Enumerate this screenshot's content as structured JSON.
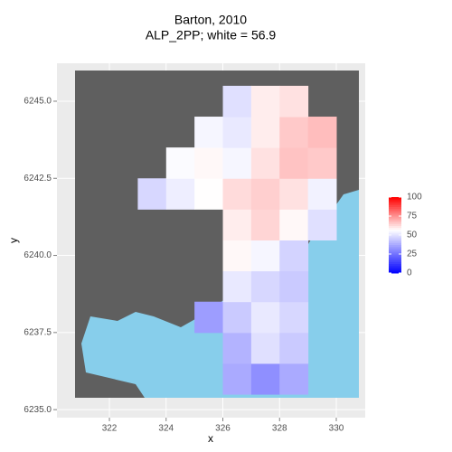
{
  "chart_data": {
    "type": "heatmap",
    "title": "Barton, 2010",
    "subtitle": "ALP_2PP; white = 56.9",
    "x_label": "x",
    "y_label": "y",
    "x": [
      323.5,
      324.5,
      325.5,
      326.5,
      327.5,
      328.5,
      329.5,
      330.5
    ],
    "y": [
      6236,
      6237,
      6238,
      6239,
      6240,
      6241,
      6242,
      6243,
      6244,
      6245
    ],
    "values": [
      [
        null,
        null,
        null,
        38,
        32,
        38,
        null,
        null
      ],
      [
        null,
        null,
        null,
        40,
        50,
        45,
        null,
        null
      ],
      [
        null,
        null,
        35,
        45,
        52,
        48,
        null,
        null
      ],
      [
        null,
        null,
        null,
        52,
        48,
        45,
        null,
        null
      ],
      [
        null,
        null,
        null,
        58,
        55,
        47,
        null,
        null
      ],
      [
        null,
        null,
        null,
        60,
        64,
        58,
        50,
        null
      ],
      [
        48,
        53,
        57,
        63,
        65,
        62,
        54,
        null
      ],
      [
        null,
        56,
        58,
        55,
        62,
        67,
        66,
        null
      ],
      [
        null,
        null,
        55,
        52,
        60,
        66,
        68,
        null
      ],
      [
        null,
        null,
        null,
        50,
        60,
        62,
        null,
        null
      ]
    ],
    "xlim": [
      320.15,
      331.02
    ],
    "ylim": [
      6234.74,
      6246.23
    ],
    "xticks": [
      322,
      324,
      326,
      328,
      330
    ],
    "yticks": [
      {
        "value": 6235,
        "label": "6235.0"
      },
      {
        "value": 6237.5,
        "label": "6237.5"
      },
      {
        "value": 6240,
        "label": "6240.0"
      },
      {
        "value": 6242.5,
        "label": "6242.5"
      },
      {
        "value": 6245,
        "label": "6245.0"
      }
    ],
    "grid": true,
    "color_scale": {
      "low": "#0000ff",
      "mid": "#ffffff",
      "high": "#ff0000",
      "midpoint": 56.9,
      "limits": [
        0,
        100
      ],
      "ticks": [
        0,
        25,
        50,
        75,
        100
      ]
    },
    "legend_position": "right"
  }
}
